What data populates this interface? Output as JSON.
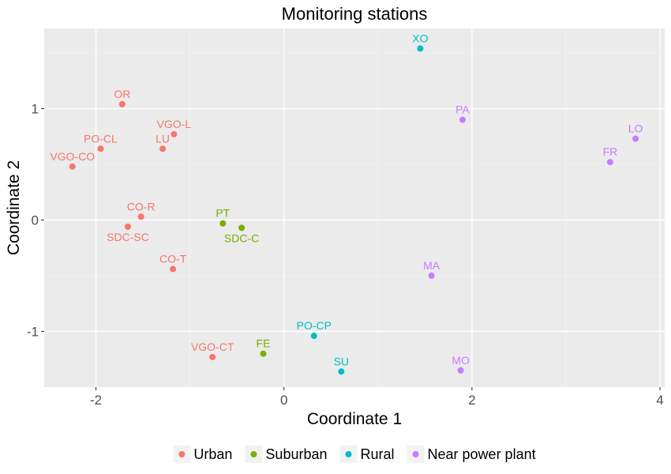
{
  "chart_data": {
    "type": "scatter",
    "title": "Monitoring stations",
    "xlabel": "Coordinate 1",
    "ylabel": "Coordinate 2",
    "xlim": [
      -2.55,
      4.05
    ],
    "ylim": [
      -1.5,
      1.72
    ],
    "xticks": [
      -2,
      0,
      2,
      4
    ],
    "yticks": [
      -1,
      0,
      1
    ],
    "xminor": [
      -1,
      1,
      3
    ],
    "yminor": [
      -0.5,
      0.5,
      1.5
    ],
    "grid": true,
    "legend_position": "bottom",
    "series": [
      {
        "name": "Urban",
        "color": "#F8766D",
        "points": [
          {
            "label": "OR",
            "x": -1.72,
            "y": 1.04
          },
          {
            "label": "VGO-L",
            "x": -1.17,
            "y": 0.77
          },
          {
            "label": "PO-CL",
            "x": -1.95,
            "y": 0.64
          },
          {
            "label": "LU",
            "x": -1.29,
            "y": 0.64
          },
          {
            "label": "VGO-CO",
            "x": -2.25,
            "y": 0.48
          },
          {
            "label": "CO-R",
            "x": -1.52,
            "y": 0.03
          },
          {
            "label": "SDC-SC",
            "x": -1.66,
            "y": -0.06
          },
          {
            "label": "CO-T",
            "x": -1.18,
            "y": -0.44
          },
          {
            "label": "VGO-CT",
            "x": -0.76,
            "y": -1.23
          }
        ]
      },
      {
        "name": "Suburban",
        "color": "#7CAE00",
        "points": [
          {
            "label": "PT",
            "x": -0.65,
            "y": -0.03
          },
          {
            "label": "SDC-C",
            "x": -0.45,
            "y": -0.07
          },
          {
            "label": "FE",
            "x": -0.22,
            "y": -1.2
          }
        ]
      },
      {
        "name": "Rural",
        "color": "#00BFC4",
        "points": [
          {
            "label": "XO",
            "x": 1.45,
            "y": 1.54
          },
          {
            "label": "PO-CP",
            "x": 0.32,
            "y": -1.04
          },
          {
            "label": "SU",
            "x": 0.61,
            "y": -1.36
          }
        ]
      },
      {
        "name": "Near power plant",
        "color": "#C77CFF",
        "points": [
          {
            "label": "PA",
            "x": 1.9,
            "y": 0.9
          },
          {
            "label": "LO",
            "x": 3.74,
            "y": 0.73
          },
          {
            "label": "FR",
            "x": 3.47,
            "y": 0.52
          },
          {
            "label": "MA",
            "x": 1.57,
            "y": -0.5
          },
          {
            "label": "MO",
            "x": 1.88,
            "y": -1.35
          }
        ]
      }
    ]
  }
}
